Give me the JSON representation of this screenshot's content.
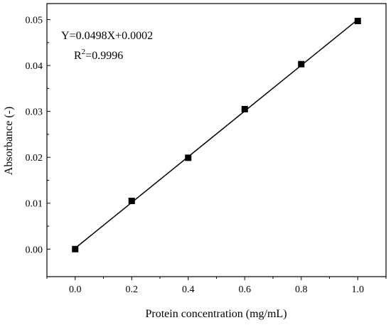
{
  "chart_data": {
    "type": "scatter",
    "xlabel": "Protein concentration (mg/mL)",
    "ylabel": "Absorbance (-)",
    "xlim": [
      -0.1,
      1.1
    ],
    "ylim": [
      -0.006,
      0.0535
    ],
    "x_ticks": [
      "0.0",
      "0.2",
      "0.4",
      "0.6",
      "0.8",
      "1.0"
    ],
    "y_ticks": [
      "0.00",
      "0.01",
      "0.02",
      "0.03",
      "0.04",
      "0.05"
    ],
    "series": [
      {
        "marker": "square",
        "color": "#000000",
        "x": [
          0.0,
          0.2,
          0.4,
          0.6,
          0.8,
          1.0
        ],
        "y": [
          0.0,
          0.0105,
          0.0199,
          0.0305,
          0.0403,
          0.0497
        ]
      }
    ],
    "fit_line": {
      "slope": 0.0498,
      "intercept": 0.0002,
      "x_range": [
        0.0,
        1.0
      ]
    },
    "annotations": {
      "equation": "Y=0.0498X+0.0002",
      "r2_prefix": "R",
      "r2_sup": "2",
      "r2_value": "=0.9996"
    },
    "grid": false
  }
}
